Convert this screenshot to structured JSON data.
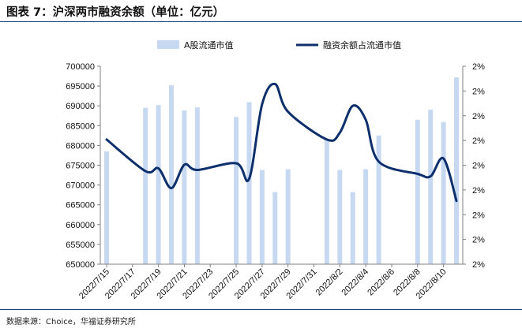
{
  "header": {
    "title": "图表 7：沪深两市融资余额（单位：亿元）"
  },
  "footer": {
    "source": "数据来源：Choice，华福证券研究所"
  },
  "colors": {
    "bar": "#c6d9f0",
    "line": "#0d2f6b",
    "axis": "#808080",
    "rule": "#1f3f79"
  },
  "chart_data": {
    "type": "bar+line",
    "categories": [
      "2022/7/15",
      "2022/7/17",
      "2022/7/19",
      "2022/7/21",
      "2022/7/23",
      "2022/7/25",
      "2022/7/27",
      "2022/7/29",
      "2022/7/31",
      "2022/8/2",
      "2022/8/4",
      "2022/8/6",
      "2022/8/8",
      "2022/8/10"
    ],
    "x_range": [
      "2022/7/15",
      "2022/8/11"
    ],
    "series": [
      {
        "name": "A股流通市值",
        "type": "bar",
        "axis": "left",
        "points": [
          [
            "2022/7/15",
            678500
          ],
          [
            "2022/7/18",
            689500
          ],
          [
            "2022/7/19",
            690200
          ],
          [
            "2022/7/20",
            695200
          ],
          [
            "2022/7/21",
            688800
          ],
          [
            "2022/7/22",
            689600
          ],
          [
            "2022/7/25",
            687200
          ],
          [
            "2022/7/26",
            690900
          ],
          [
            "2022/7/27",
            673800
          ],
          [
            "2022/7/28",
            668200
          ],
          [
            "2022/7/29",
            674000
          ],
          [
            "2022/8/1",
            681600
          ],
          [
            "2022/8/2",
            673800
          ],
          [
            "2022/8/3",
            668200
          ],
          [
            "2022/8/4",
            674000
          ],
          [
            "2022/8/5",
            682500
          ],
          [
            "2022/8/8",
            686500
          ],
          [
            "2022/8/9",
            689000
          ],
          [
            "2022/8/10",
            685900
          ],
          [
            "2022/8/11",
            697200
          ]
        ]
      },
      {
        "name": "融资余额占流通市值",
        "type": "line",
        "axis": "right",
        "points": [
          [
            "2022/7/15",
            681500
          ],
          [
            "2022/7/18",
            673500
          ],
          [
            "2022/7/19",
            674200
          ],
          [
            "2022/7/20",
            669200
          ],
          [
            "2022/7/21",
            675100
          ],
          [
            "2022/7/22",
            673800
          ],
          [
            "2022/7/25",
            675500
          ],
          [
            "2022/7/26",
            671600
          ],
          [
            "2022/7/27",
            690400
          ],
          [
            "2022/7/28",
            695500
          ],
          [
            "2022/7/29",
            688500
          ],
          [
            "2022/8/1",
            681500
          ],
          [
            "2022/8/2",
            683200
          ],
          [
            "2022/8/3",
            690000
          ],
          [
            "2022/8/4",
            686500
          ],
          [
            "2022/8/5",
            675900
          ],
          [
            "2022/8/8",
            672800
          ],
          [
            "2022/8/9",
            672200
          ],
          [
            "2022/8/10",
            676700
          ],
          [
            "2022/8/11",
            666000
          ]
        ]
      }
    ],
    "y_left": {
      "ylim": [
        650000,
        700000
      ],
      "ticks": [
        "650000",
        "655000",
        "660000",
        "665000",
        "670000",
        "675000",
        "680000",
        "685000",
        "690000",
        "695000",
        "700000"
      ]
    },
    "y_right": {
      "ticks": [
        "2%",
        "2%",
        "2%",
        "2%",
        "2%",
        "2%",
        "2%",
        "2%",
        "2%"
      ]
    },
    "legend": {
      "position": "top-center"
    },
    "grid": false
  }
}
